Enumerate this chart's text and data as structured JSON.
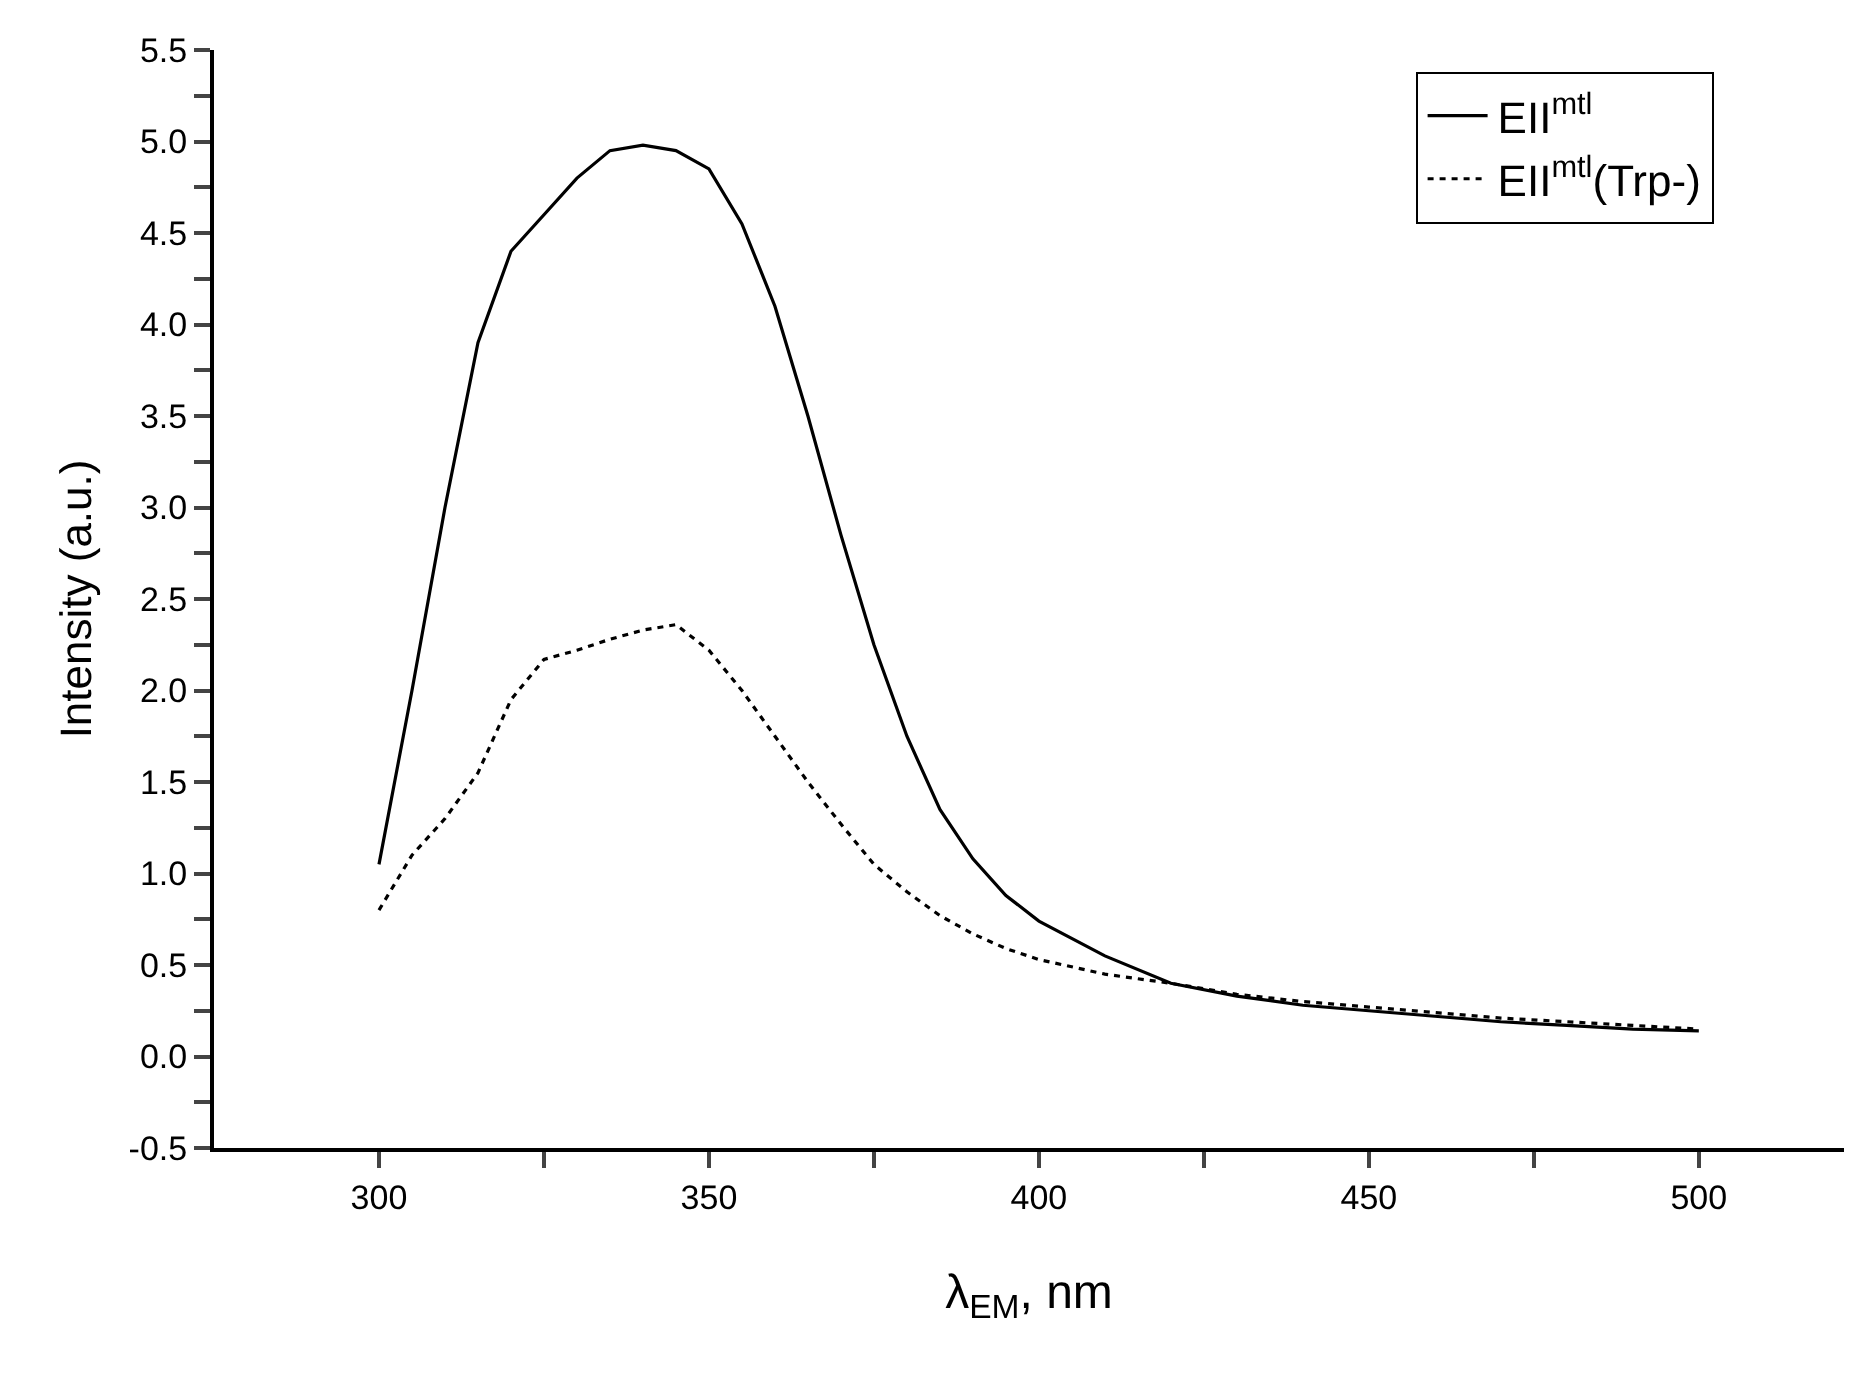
{
  "chart_data": {
    "type": "line",
    "xlabel": "λ$_{EM}$, nm",
    "ylabel": "Intensity (a.u.)",
    "x": [
      300,
      305,
      310,
      315,
      320,
      325,
      330,
      335,
      340,
      345,
      350,
      355,
      360,
      365,
      370,
      375,
      380,
      385,
      390,
      395,
      400,
      410,
      420,
      430,
      440,
      450,
      460,
      470,
      480,
      490,
      500
    ],
    "series": [
      {
        "name": "EII$^{mtl}$",
        "color": "#000000",
        "line_style": "solid",
        "values": [
          1.05,
          2.0,
          3.0,
          3.9,
          4.4,
          4.6,
          4.8,
          4.95,
          4.98,
          4.95,
          4.85,
          4.55,
          4.1,
          3.5,
          2.85,
          2.25,
          1.75,
          1.35,
          1.08,
          0.88,
          0.74,
          0.55,
          0.4,
          0.33,
          0.28,
          0.25,
          0.22,
          0.19,
          0.17,
          0.15,
          0.14
        ]
      },
      {
        "name": "EII$^{mtl}$(Trp-)",
        "color": "#000000",
        "line_style": "dotted",
        "values": [
          0.8,
          1.1,
          1.3,
          1.55,
          1.95,
          2.17,
          2.22,
          2.28,
          2.33,
          2.36,
          2.22,
          2.0,
          1.75,
          1.5,
          1.27,
          1.05,
          0.9,
          0.77,
          0.67,
          0.59,
          0.53,
          0.45,
          0.4,
          0.34,
          0.3,
          0.27,
          0.24,
          0.21,
          0.19,
          0.17,
          0.15
        ]
      }
    ],
    "xlim": [
      275,
      522
    ],
    "xticks": [
      300,
      {
        "value": 325,
        "label": null
      },
      350,
      {
        "value": 375,
        "label": null
      },
      400,
      {
        "value": 425,
        "label": null
      },
      450,
      {
        "value": 475,
        "label": null
      },
      500
    ],
    "ylim": [
      -0.5,
      5.5
    ],
    "yticks": [
      -0.5,
      {
        "value": -0.25,
        "label": null
      },
      "0.0",
      {
        "value": 0.25,
        "label": null
      },
      0.5,
      {
        "value": 0.75,
        "label": null
      },
      "1.0",
      {
        "value": 1.25,
        "label": null
      },
      1.5,
      {
        "value": 1.75,
        "label": null
      },
      "2.0",
      {
        "value": 2.25,
        "label": null
      },
      2.5,
      {
        "value": 2.75,
        "label": null
      },
      "3.0",
      {
        "value": 3.25,
        "label": null
      },
      3.5,
      {
        "value": 3.75,
        "label": null
      },
      "4.0",
      {
        "value": 4.25,
        "label": null
      },
      4.5,
      {
        "value": 4.75,
        "label": null
      },
      "5.0",
      {
        "value": 5.25,
        "label": null
      },
      5.5
    ],
    "grid": false,
    "legend": "top right",
    "marker": "none"
  }
}
